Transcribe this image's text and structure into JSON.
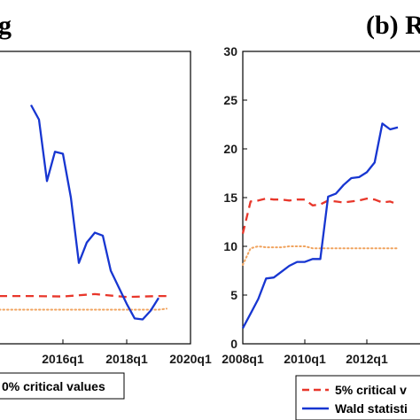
{
  "chart_data": [
    {
      "type": "line",
      "title": "g",
      "x_ticks": [
        "2016q1",
        "2018q1",
        "2020q1"
      ],
      "y_ticks": [],
      "ylim": [
        0,
        30
      ],
      "grid": false,
      "legend_placement": "bottom",
      "legend": [
        {
          "label": "0% critical values",
          "style": "dotted",
          "color": "#f0a35e"
        }
      ],
      "series": [
        {
          "style": "solid",
          "color": "#1736d1",
          "x": [
            "2015q1",
            "2015q2",
            "2015q3",
            "2015q4",
            "2016q1",
            "2016q2",
            "2016q3",
            "2016q4",
            "2017q1",
            "2017q2",
            "2017q3",
            "2017q4",
            "2018q1",
            "2018q2",
            "2018q3",
            "2018q4",
            "2019q1",
            "2019q2"
          ],
          "values": [
            24.5,
            23,
            16.7,
            19.7,
            19.5,
            15,
            8.3,
            10.4,
            11.4,
            11.1,
            7.5,
            5.8,
            4.1,
            2.6,
            2.5,
            3.4,
            4.7,
            null
          ]
        },
        {
          "style": "dashed",
          "color": "#e8372b",
          "x": [
            "2014q1",
            "2015q1",
            "2016q1",
            "2017q1",
            "2018q1",
            "2019q1",
            "2019q2"
          ],
          "values": [
            4.9,
            4.9,
            4.85,
            5.1,
            4.8,
            4.9,
            4.9
          ]
        },
        {
          "style": "dotted",
          "color": "#f0a35e",
          "x": [
            "2014q1",
            "2015q1",
            "2016q1",
            "2017q1",
            "2018q1",
            "2019q1",
            "2019q2"
          ],
          "values": [
            3.5,
            3.5,
            3.5,
            3.5,
            3.5,
            3.5,
            3.6
          ]
        }
      ]
    },
    {
      "type": "line",
      "title": "(b) R",
      "x_ticks": [
        "2008q1",
        "2010q1",
        "2012q1"
      ],
      "y_ticks": [
        "0",
        "5",
        "10",
        "15",
        "20",
        "25",
        "30"
      ],
      "ylim": [
        0,
        30
      ],
      "grid": false,
      "legend_placement": "bottom",
      "legend": [
        {
          "label": "5% critical v",
          "style": "dashed",
          "color": "#e8372b"
        },
        {
          "label": "Wald statisti",
          "style": "solid",
          "color": "#1736d1"
        }
      ],
      "series": [
        {
          "style": "solid",
          "color": "#1736d1",
          "x": [
            "2008q1",
            "2008q2",
            "2008q3",
            "2008q4",
            "2009q1",
            "2009q2",
            "2009q3",
            "2009q4",
            "2010q1",
            "2010q2",
            "2010q3",
            "2010q4",
            "2011q1",
            "2011q2",
            "2011q3",
            "2011q4",
            "2012q1",
            "2012q2",
            "2012q3",
            "2012q4",
            "2013q1"
          ],
          "values": [
            1.6,
            3.1,
            4.6,
            6.7,
            6.8,
            7.4,
            8.0,
            8.4,
            8.4,
            8.7,
            8.7,
            15.1,
            15.4,
            16.3,
            17.0,
            17.1,
            17.6,
            18.6,
            22.6,
            22.0,
            22.2
          ]
        },
        {
          "style": "dashed",
          "color": "#e8372b",
          "x": [
            "2008q1",
            "2008q2",
            "2008q3",
            "2008q4",
            "2009q1",
            "2009q2",
            "2009q3",
            "2009q4",
            "2010q1",
            "2010q2",
            "2010q3",
            "2010q4",
            "2011q1",
            "2011q2",
            "2011q3",
            "2011q4",
            "2012q1",
            "2012q2",
            "2012q3",
            "2012q4",
            "2013q1"
          ],
          "values": [
            11.3,
            14.6,
            14.7,
            14.9,
            14.8,
            14.8,
            14.7,
            14.8,
            14.8,
            14.2,
            14.3,
            14.7,
            14.6,
            14.5,
            14.6,
            14.7,
            14.9,
            14.8,
            14.5,
            14.6,
            14.3
          ]
        },
        {
          "style": "dotted",
          "color": "#f0a35e",
          "x": [
            "2008q1",
            "2008q2",
            "2008q3",
            "2008q4",
            "2009q1",
            "2009q2",
            "2009q3",
            "2009q4",
            "2010q1",
            "2010q2",
            "2010q3",
            "2010q4",
            "2011q1",
            "2011q2",
            "2011q3",
            "2011q4",
            "2012q1",
            "2012q2",
            "2012q3",
            "2012q4",
            "2013q1"
          ],
          "values": [
            8.1,
            9.8,
            10.0,
            9.9,
            9.9,
            9.9,
            10.0,
            10.0,
            10.0,
            9.8,
            9.8,
            9.8,
            9.8,
            9.8,
            9.8,
            9.8,
            9.8,
            9.8,
            9.8,
            9.8,
            9.8
          ]
        }
      ]
    }
  ]
}
